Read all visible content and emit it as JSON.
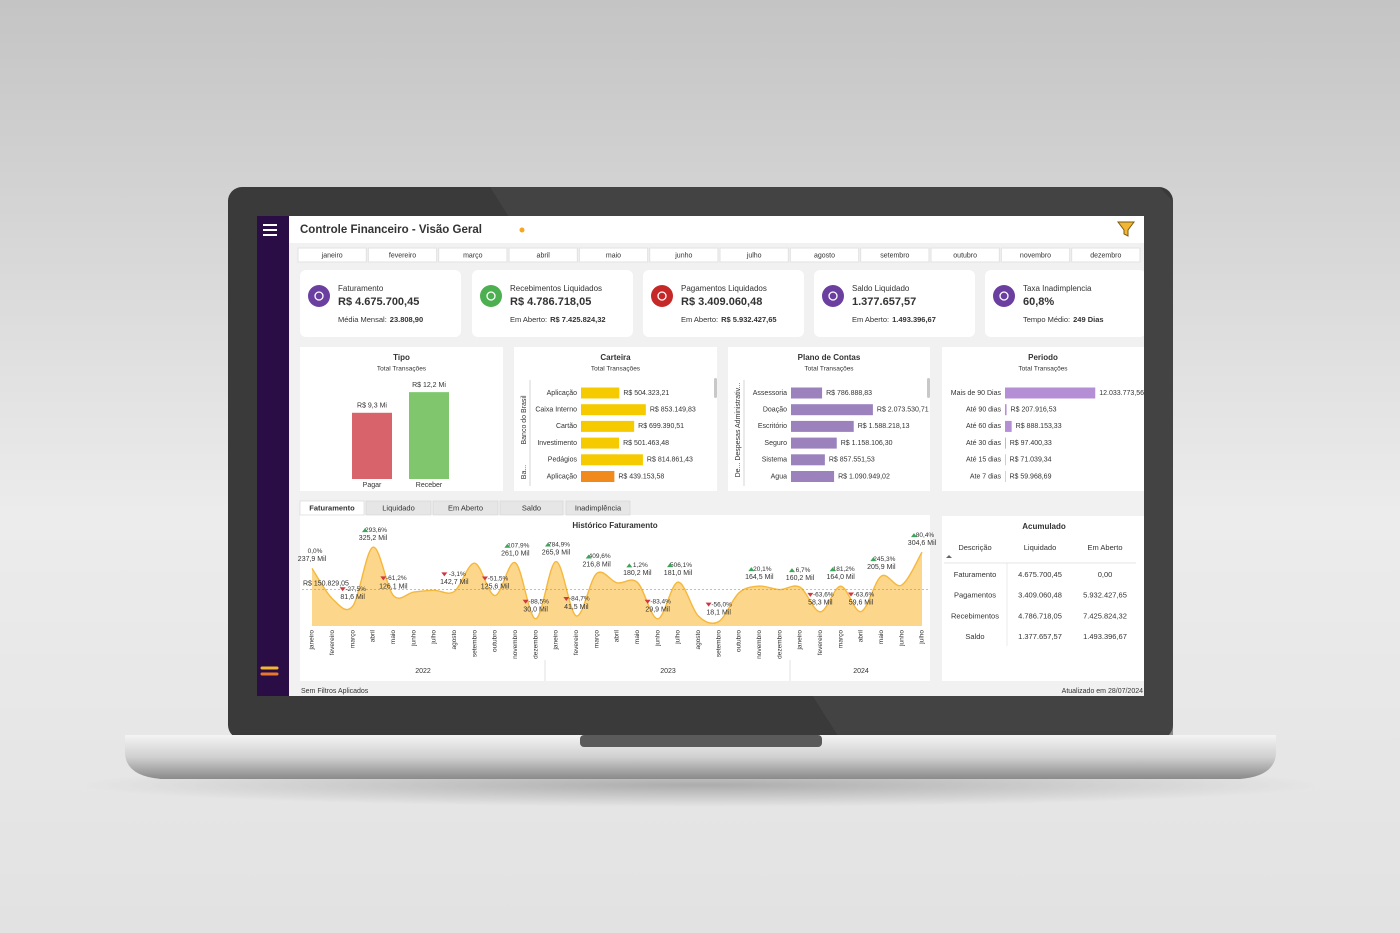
{
  "header": {
    "title": "Controle Financeiro - Visão Geral"
  },
  "months": [
    "janeiro",
    "fevereiro",
    "março",
    "abril",
    "maio",
    "junho",
    "julho",
    "agosto",
    "setembro",
    "outubro",
    "novembro",
    "dezembro"
  ],
  "kpis": [
    {
      "label": "Faturamento",
      "value": "R$ 4.675.700,45",
      "sub_label": "Média Mensal:",
      "sub_value": "23.808,90",
      "color": "#6b3fa0"
    },
    {
      "label": "Recebimentos Liquidados",
      "value": "R$ 4.786.718,05",
      "sub_label": "Em Aberto:",
      "sub_value": "R$ 7.425.824,32",
      "color": "#4caf50"
    },
    {
      "label": "Pagamentos Liquidados",
      "value": "R$ 3.409.060,48",
      "sub_label": "Em Aberto:",
      "sub_value": "R$ 5.932.427,65",
      "color": "#c62828"
    },
    {
      "label": "Saldo Liquidado",
      "value": "1.377.657,57",
      "sub_label": "Em Aberto:",
      "sub_value": "1.493.396,67",
      "color": "#6b3fa0"
    },
    {
      "label": "Taxa Inadimplencia",
      "value": "60,8%",
      "sub_label": "Tempo Médio:",
      "sub_value": "249 Dias",
      "color": "#6b3fa0"
    }
  ],
  "chart_data": [
    {
      "type": "bar",
      "title": "Tipo",
      "subtitle": "Total Transações",
      "categories": [
        "Pagar",
        "Receber"
      ],
      "values": [
        9.3,
        12.2
      ],
      "value_labels": [
        "R$ 9,3 Mi",
        "R$ 12,2 Mi"
      ],
      "colors": [
        "#d9636a",
        "#7fc66c"
      ],
      "ylim": [
        0,
        12.5
      ]
    },
    {
      "type": "hbar",
      "title": "Carteira",
      "subtitle": "Total Transações",
      "group_labels": [
        "Banco do Brasil",
        "Ba..."
      ],
      "categories": [
        "Aplicação",
        "Caixa Interno",
        "Cartão",
        "Investimento",
        "Pedágios",
        "Aplicação"
      ],
      "values": [
        504323.21,
        853149.83,
        699390.51,
        501463.48,
        814861.43,
        439153.58
      ],
      "value_labels": [
        "R$ 504.323,21",
        "R$ 853.149,83",
        "R$ 699.390,51",
        "R$ 501.463,48",
        "R$ 814.861,43",
        "R$ 439.153,58"
      ],
      "colors": [
        "#f5cb00",
        "#f5cb00",
        "#f5cb00",
        "#f5cb00",
        "#f5cb00",
        "#f08a1c"
      ],
      "xlim": [
        0,
        1000000
      ]
    },
    {
      "type": "hbar",
      "title": "Plano de Contas",
      "subtitle": "Total Transações",
      "group_labels": [
        "De... Despesas Administrativ..."
      ],
      "categories": [
        "Assessoria",
        "Doação",
        "Escritório",
        "Seguro",
        "Sistema",
        "Agua"
      ],
      "values": [
        786888.83,
        2073530.71,
        1588218.13,
        1158106.3,
        857551.53,
        1090949.02
      ],
      "value_labels": [
        "R$ 786.888,83",
        "R$ 2.073.530,71",
        "R$ 1.588.218,13",
        "R$ 1.158.106,30",
        "R$ 857.551,53",
        "R$ 1.090.949,02"
      ],
      "colors": [
        "#9b82bd",
        "#9b82bd",
        "#9b82bd",
        "#9b82bd",
        "#9b82bd",
        "#9b82bd"
      ],
      "xlim": [
        0,
        2000000
      ]
    },
    {
      "type": "hbar",
      "title": "Periodo",
      "subtitle": "Total Transações",
      "categories": [
        "Mais de 90 Dias",
        "Até 90 dias",
        "Até 60 dias",
        "Até 30 dias",
        "Até 15 dias",
        "Ate 7 dias"
      ],
      "values": [
        12033773.56,
        207916.53,
        888153.33,
        97400.33,
        71039.34,
        59968.69
      ],
      "value_labels": [
        "12.033.773,56",
        "R$ 207.916,53",
        "R$ 888.153,33",
        "R$ 97.400,33",
        "R$ 71.039,34",
        "R$ 59.968,69"
      ],
      "colors": [
        "#b48fd6",
        "#b48fd6",
        "#b48fd6",
        "#b48fd6",
        "#b48fd6",
        "#b48fd6"
      ],
      "xlim": [
        0,
        12000000
      ]
    },
    {
      "type": "area",
      "title": "Histórico Faturamento",
      "color": "#fcd68a",
      "line_color": "#f5b83d",
      "categories": [
        "janeiro",
        "fevereiro",
        "março",
        "abril",
        "maio",
        "junho",
        "julho",
        "agosto",
        "setembro",
        "outubro",
        "novembro",
        "dezembro",
        "janeiro",
        "fevereiro",
        "março",
        "abril",
        "maio",
        "junho",
        "julho",
        "agosto",
        "setembro",
        "outubro",
        "novembro",
        "dezembro",
        "janeiro",
        "fevereiro",
        "março",
        "abril",
        "maio",
        "junho",
        "julho"
      ],
      "years": [
        "2022",
        "2023",
        "2024"
      ],
      "values": [
        237.9,
        112.6,
        81.6,
        325.2,
        126.1,
        140.0,
        147.3,
        142.7,
        259.0,
        125.6,
        261.0,
        30.0,
        265.9,
        41.5,
        216.8,
        178.1,
        180.2,
        29.9,
        181.0,
        41.1,
        18.1,
        137.0,
        164.5,
        150.1,
        160.2,
        58.3,
        164.0,
        59.6,
        205.9,
        168.8,
        304.6
      ],
      "value_labels": [
        "237,9 Mil",
        null,
        "81,6 Mil",
        "325,2 Mil",
        "126,1 Mil",
        null,
        null,
        "142,7 Mil",
        null,
        "125,6 Mil",
        "261,0 Mil",
        "30,0 Mil",
        "265,9 Mil",
        "41,5 Mil",
        "216,8 Mil",
        null,
        "180,2 Mil",
        "29,9 Mil",
        "181,0 Mil",
        null,
        "18,1 Mil",
        null,
        "164,5 Mil",
        null,
        "160,2 Mil",
        "58,3 Mil",
        "164,0 Mil",
        "59,6 Mil",
        "205,9 Mil",
        null,
        "304,6 Mil"
      ],
      "change_labels": [
        "0,0%",
        null,
        "-27,5%",
        "293,6%",
        "-61,2%",
        null,
        null,
        "-3,1%",
        null,
        "-51,5%",
        "107,9%",
        "-88,5%",
        "784,9%",
        "-84,7%",
        "409,6%",
        null,
        "1,2%",
        "-83,4%",
        "506,1%",
        null,
        "-56,0%",
        null,
        "20,1%",
        null,
        "6,7%",
        "-63,6%",
        "181,2%",
        "-63,6%",
        "245,3%",
        null,
        "80,4%"
      ],
      "reference_line": {
        "value": 150.82905,
        "label": "R$ 150.829,05"
      },
      "ylim": [
        0,
        330
      ]
    }
  ],
  "tabs": [
    "Faturamento",
    "Liquidado",
    "Em Aberto",
    "Saldo",
    "Inadimplência"
  ],
  "table": {
    "title": "Acumulado",
    "columns": [
      "Descrição",
      "Liquidado",
      "Em Aberto"
    ],
    "rows": [
      [
        "Faturamento",
        "4.675.700,45",
        "0,00"
      ],
      [
        "Pagamentos",
        "3.409.060,48",
        "5.932.427,65"
      ],
      [
        "Recebimentos",
        "4.786.718,05",
        "7.425.824,32"
      ],
      [
        "Saldo",
        "1.377.657,57",
        "1.493.396,67"
      ]
    ]
  },
  "footer": {
    "filters": "Sem Filtros Aplicados",
    "updated": "Atualizado em 28/07/2024"
  }
}
